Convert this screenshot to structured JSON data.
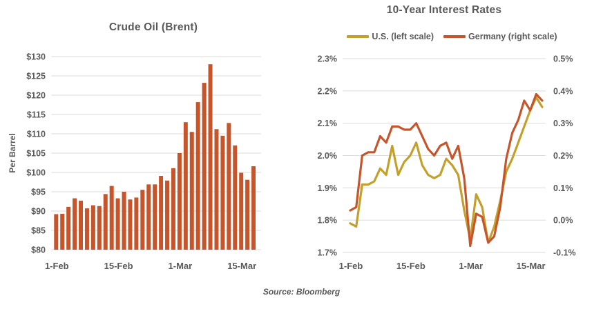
{
  "page": {
    "source_note": "Source: Bloomberg"
  },
  "colors": {
    "orange": "#C6552B",
    "gold": "#C2A029",
    "text_gray": "#595959",
    "gridline": "#DBDBDB"
  },
  "chart_data": [
    {
      "id": "crude_oil",
      "type": "bar",
      "title": "Crude Oil (Brent)",
      "ylabel": "Per Barrel",
      "grid": true,
      "ylim": [
        80,
        130
      ],
      "bar_color_key": "orange",
      "y_ticks": [
        {
          "label": "$80",
          "value": 80
        },
        {
          "label": "$85",
          "value": 85
        },
        {
          "label": "$90",
          "value": 90
        },
        {
          "label": "$95",
          "value": 95
        },
        {
          "label": "$100",
          "value": 100
        },
        {
          "label": "$105",
          "value": 105
        },
        {
          "label": "$110",
          "value": 110
        },
        {
          "label": "$115",
          "value": 115
        },
        {
          "label": "$120",
          "value": 120
        },
        {
          "label": "$125",
          "value": 125
        },
        {
          "label": "$130",
          "value": 130
        }
      ],
      "x_ticks": [
        {
          "label": "1-Feb",
          "index": 0
        },
        {
          "label": "15-Feb",
          "index": 10
        },
        {
          "label": "1-Mar",
          "index": 20
        },
        {
          "label": "15-Mar",
          "index": 30
        }
      ],
      "values": [
        89.2,
        89.3,
        91.1,
        93.3,
        92.7,
        90.7,
        91.5,
        91.3,
        94.4,
        96.5,
        93.3,
        95.0,
        93.0,
        93.5,
        95.5,
        96.9,
        96.9,
        99.1,
        97.9,
        101.1,
        105.0,
        113.0,
        110.5,
        118.2,
        123.2,
        128.0,
        111.2,
        109.5,
        112.8,
        107.0,
        99.9,
        98.1,
        101.6
      ]
    },
    {
      "id": "interest_rates",
      "type": "line",
      "title": "10-Year Interest Rates",
      "grid": true,
      "legend_position": "top",
      "left_axis": {
        "min": 1.7,
        "max": 2.3,
        "ticks": [
          {
            "label": "2.3%",
            "value": 2.3
          },
          {
            "label": "2.2%",
            "value": 2.2
          },
          {
            "label": "2.1%",
            "value": 2.1
          },
          {
            "label": "2.0%",
            "value": 2.0
          },
          {
            "label": "1.9%",
            "value": 1.9
          },
          {
            "label": "1.8%",
            "value": 1.8
          },
          {
            "label": "1.7%",
            "value": 1.7
          }
        ]
      },
      "right_axis": {
        "min": -0.1,
        "max": 0.5,
        "ticks": [
          {
            "label": "0.5%",
            "value": 0.5
          },
          {
            "label": "0.4%",
            "value": 0.4
          },
          {
            "label": "0.3%",
            "value": 0.3
          },
          {
            "label": "0.2%",
            "value": 0.2
          },
          {
            "label": "0.1%",
            "value": 0.1
          },
          {
            "label": "0.0%",
            "value": 0.0
          },
          {
            "label": "-0.1%",
            "value": -0.1
          }
        ]
      },
      "x_ticks": [
        {
          "label": "1-Feb",
          "index": 0
        },
        {
          "label": "15-Feb",
          "index": 10
        },
        {
          "label": "1-Mar",
          "index": 20
        },
        {
          "label": "15-Mar",
          "index": 30
        }
      ],
      "series": [
        {
          "name": "U.S. (left scale)",
          "axis": "left",
          "color_key": "gold",
          "values": [
            1.79,
            1.78,
            1.91,
            1.91,
            1.92,
            1.96,
            1.94,
            2.03,
            1.94,
            1.98,
            2.0,
            2.04,
            1.97,
            1.94,
            1.93,
            1.94,
            1.99,
            1.97,
            1.94,
            1.83,
            1.74,
            1.88,
            1.84,
            1.73,
            1.78,
            1.86,
            1.95,
            1.99,
            2.04,
            2.09,
            2.14,
            2.18,
            2.15
          ]
        },
        {
          "name": "Germany (right scale)",
          "axis": "right",
          "color_key": "orange",
          "values": [
            0.03,
            0.04,
            0.2,
            0.21,
            0.21,
            0.26,
            0.24,
            0.29,
            0.29,
            0.28,
            0.28,
            0.3,
            0.26,
            0.22,
            0.2,
            0.23,
            0.24,
            0.19,
            0.23,
            0.13,
            -0.08,
            0.02,
            0.01,
            -0.07,
            -0.05,
            0.04,
            0.19,
            0.27,
            0.31,
            0.37,
            0.34,
            0.39,
            0.37
          ]
        }
      ]
    }
  ]
}
